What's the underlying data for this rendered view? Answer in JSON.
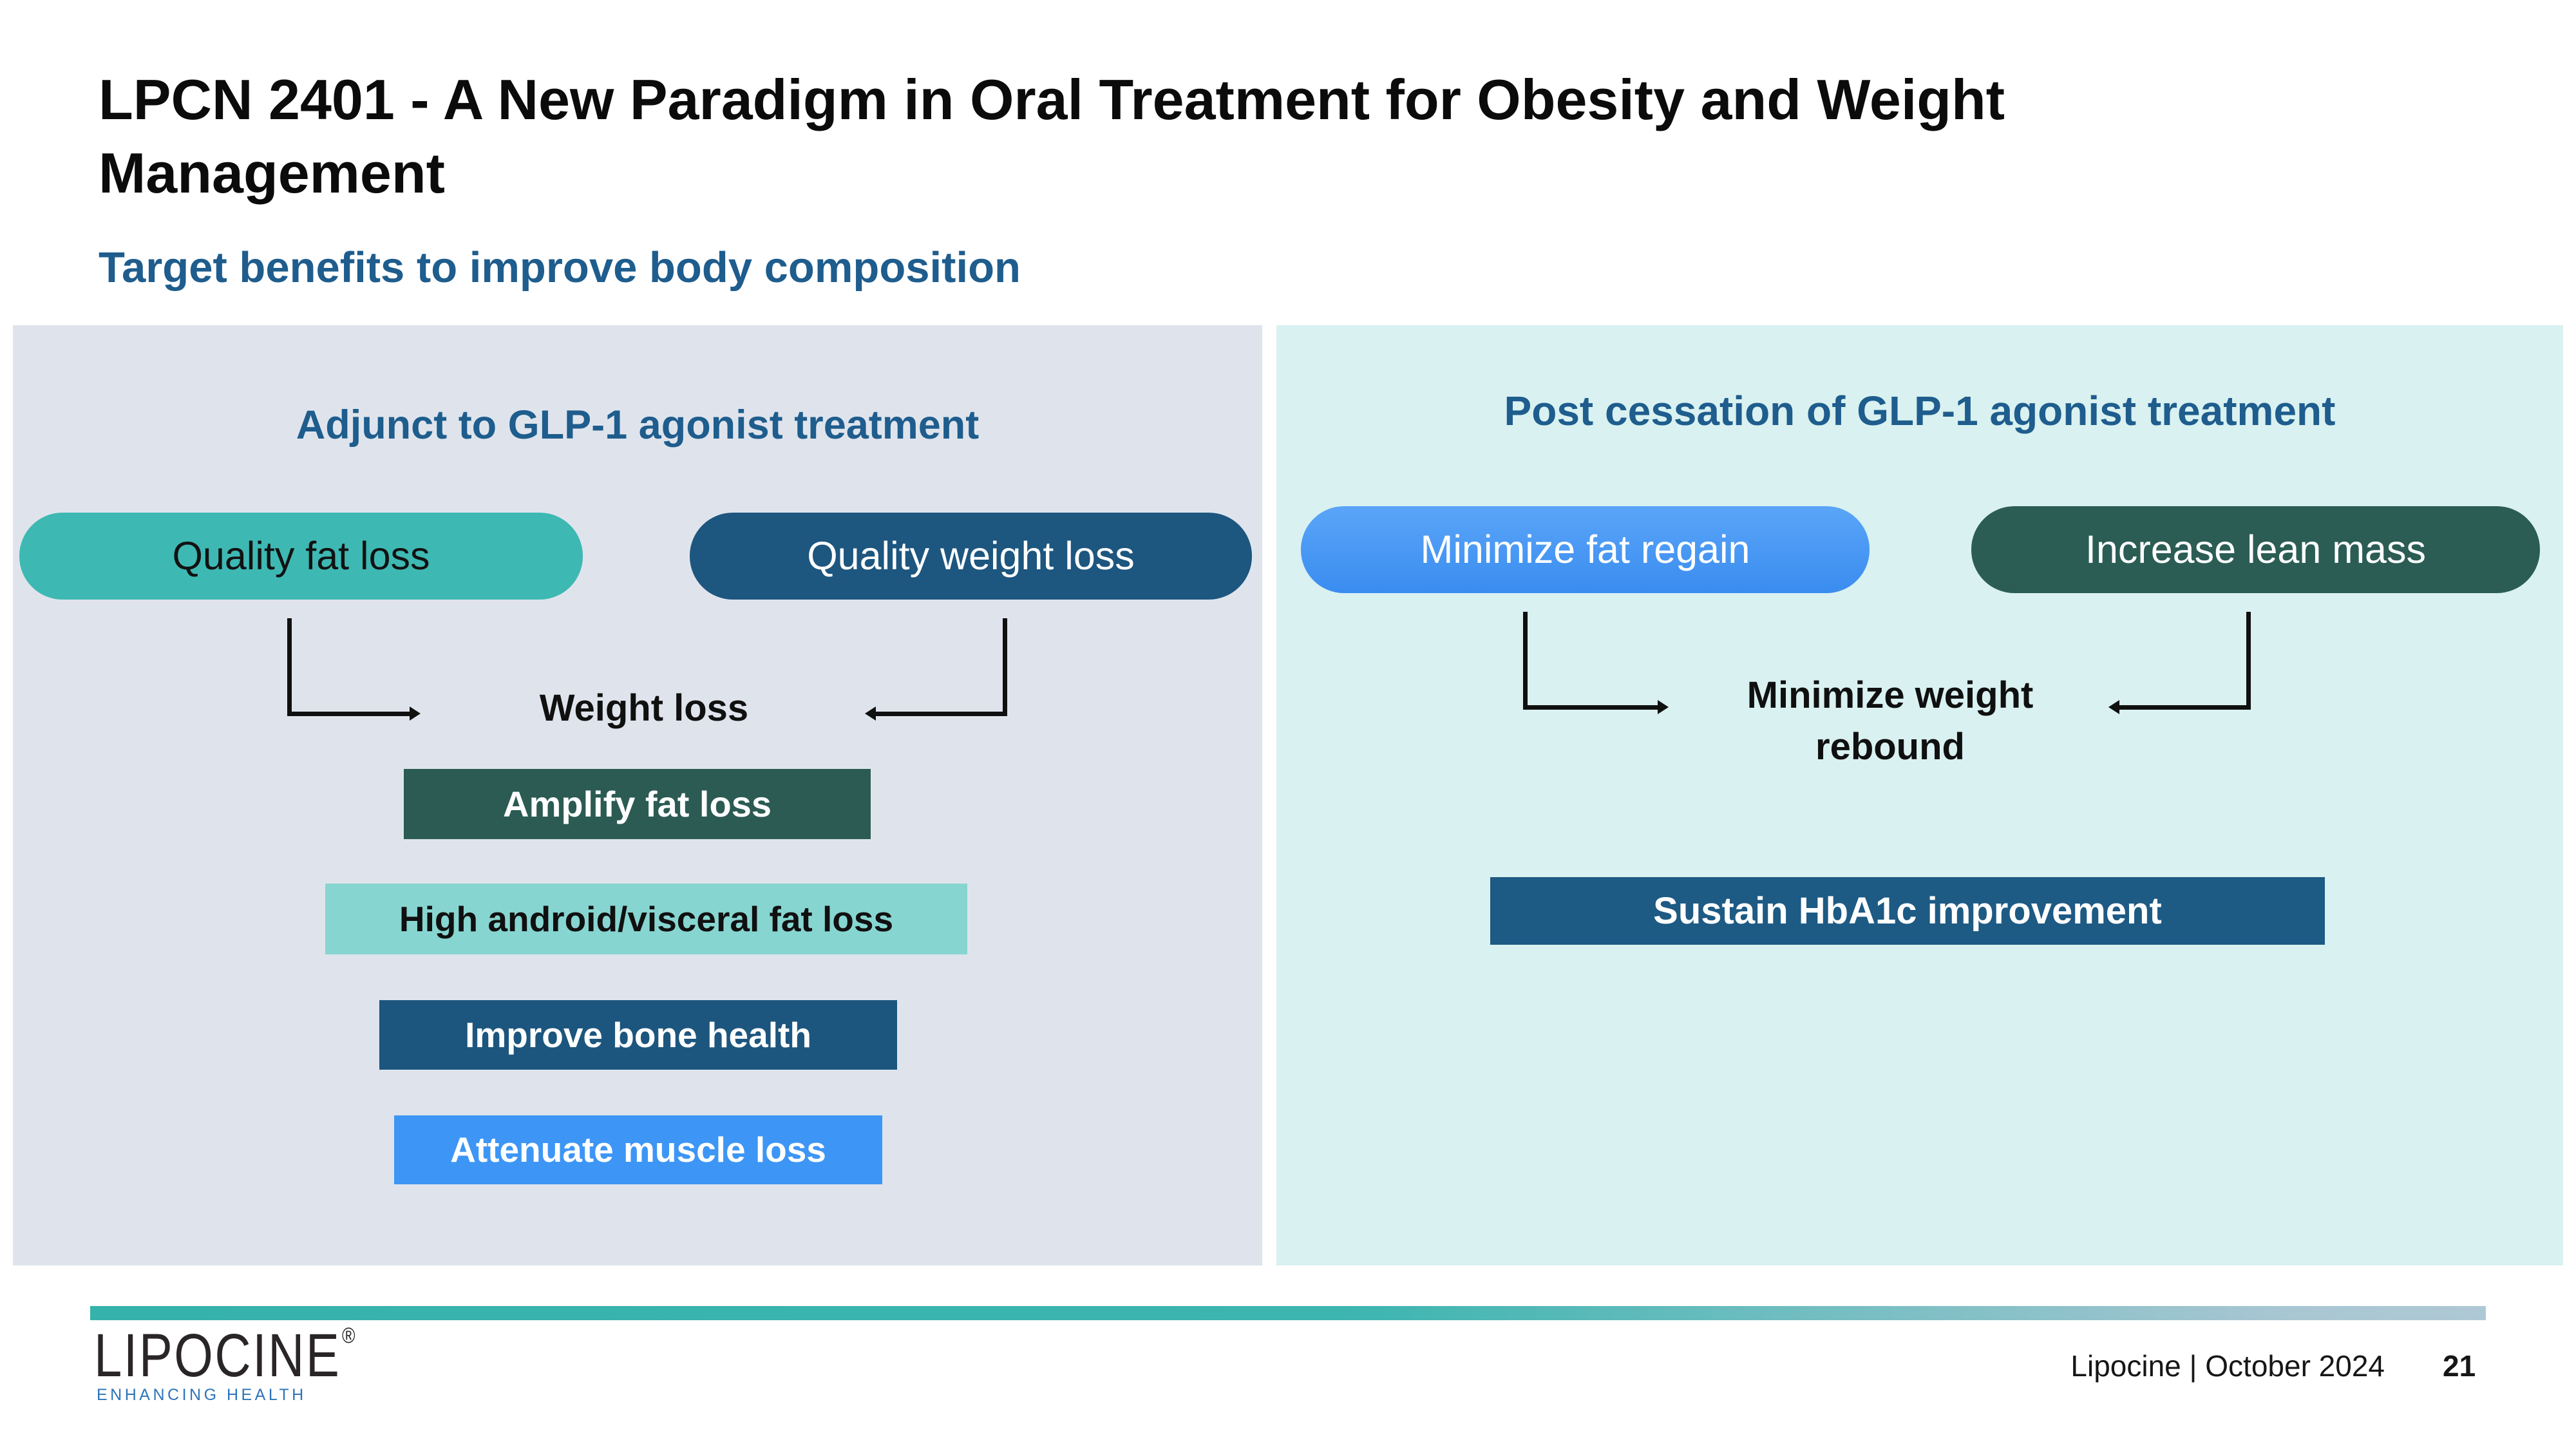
{
  "slide": {
    "title": "LPCN 2401 - A New Paradigm in Oral Treatment for Obesity and Weight Management",
    "subtitle": "Target benefits to improve body composition"
  },
  "left_panel": {
    "header": "Adjunct to GLP-1 agonist treatment",
    "background_color": "#dfe4ec",
    "pills": [
      {
        "label": "Quality fat loss",
        "color": "#3eb8b3",
        "text_color": "#121212"
      },
      {
        "label": "Quality weight loss",
        "color": "#1d567f",
        "text_color": "#ffffff"
      }
    ],
    "connector_label": "Weight loss",
    "boxes": [
      {
        "label": "Amplify fat loss",
        "color": "#2b5b53",
        "text_color": "#ffffff"
      },
      {
        "label": "High android/visceral fat loss",
        "color": "#87d5d0",
        "text_color": "#101010"
      },
      {
        "label": "Improve bone health",
        "color": "#1c567e",
        "text_color": "#ffffff"
      },
      {
        "label": "Attenuate muscle loss",
        "color": "#3d96f5",
        "text_color": "#ffffff"
      }
    ]
  },
  "right_panel": {
    "header": "Post cessation of GLP-1 agonist treatment",
    "background_color": "#d9f1f0",
    "pills": [
      {
        "label": "Minimize fat regain",
        "color_top": "#5aa5f8",
        "color_bottom": "#3a8cf0",
        "text_color": "#ffffff"
      },
      {
        "label": "Increase lean mass",
        "color": "#2b5d55",
        "text_color": "#ffffff"
      }
    ],
    "connector_label": "Minimize weight rebound",
    "boxes": [
      {
        "label": "Sustain HbA1c improvement",
        "color": "#1d5a84",
        "text_color": "#ffffff"
      }
    ]
  },
  "footer": {
    "logo_text": "LIPOCINE",
    "logo_registered": "®",
    "logo_tagline": "ENHANCING HEALTH",
    "credit": "Lipocine | October 2024",
    "page_number": "21"
  },
  "colors": {
    "heading_blue": "#1e5d8d",
    "title_black": "#0b0b0b",
    "divider_teal": "#36b2ac",
    "divider_fade": "#a9c6d3",
    "tagline_blue": "#2e74b8",
    "connector_black": "#101010"
  }
}
